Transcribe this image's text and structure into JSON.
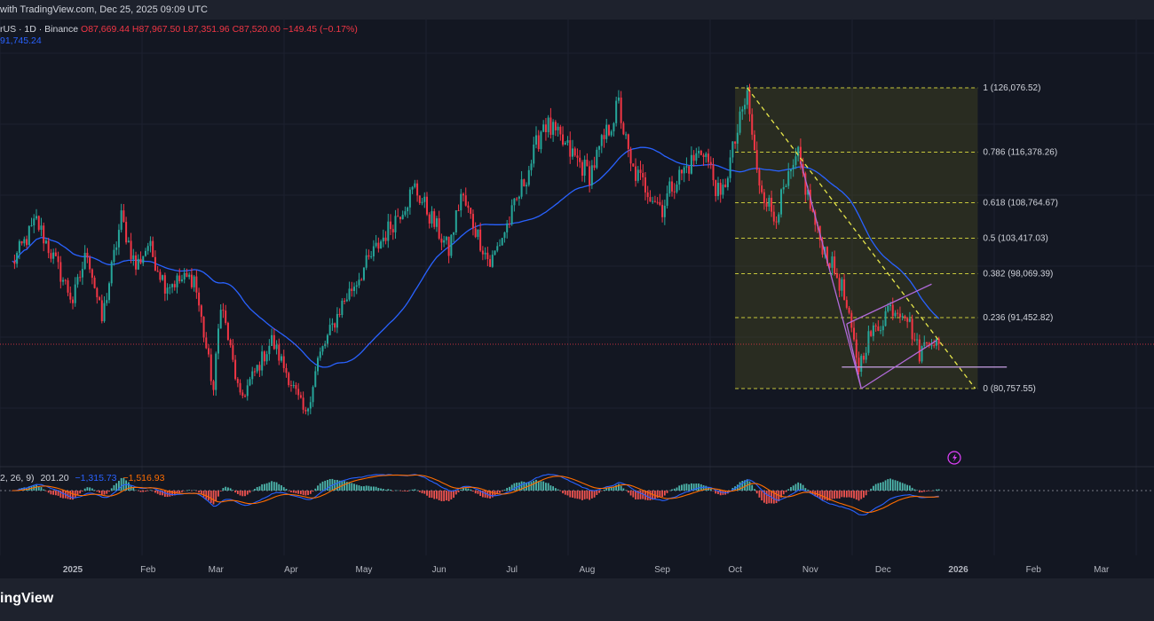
{
  "header": {
    "published": "with TradingView.com, Dec 25, 2025 09:09 UTC"
  },
  "legend": {
    "symbol": "rUS · 1D · Binance",
    "open": "O87,669.44",
    "high": "H87,967.50",
    "low": "L87,351.96",
    "close": "C87,520.00",
    "change": "−149.45 (−0.17%)"
  },
  "ma_value": "91,745.24",
  "macd_legend": {
    "params": "2, 26, 9)",
    "hist": "201.20",
    "macd": "−1,315.73",
    "signal": "−1,516.93"
  },
  "brand": "ingView",
  "colors": {
    "up": "#26a69a",
    "down": "#f23645",
    "ma": "#2962ff",
    "fib": "#c8c83c",
    "pattern": "#b06ad8",
    "signal": "#ff6d00"
  },
  "chart_data": {
    "type": "candlestick",
    "x_ticks": [
      "2025",
      "Feb",
      "Mar",
      "Apr",
      "May",
      "Jun",
      "Jul",
      "Aug",
      "Sep",
      "Oct",
      "Nov",
      "Dec",
      "2026",
      "Feb",
      "Mar"
    ],
    "anchors": [
      [
        "2024-12-07",
        99500
      ],
      [
        "2024-12-17",
        106000
      ],
      [
        "2025-01-01",
        94000
      ],
      [
        "2025-01-07",
        101500
      ],
      [
        "2025-01-13",
        91000
      ],
      [
        "2025-01-21",
        106500
      ],
      [
        "2025-01-27",
        99000
      ],
      [
        "2025-02-01",
        102500
      ],
      [
        "2025-02-08",
        96500
      ],
      [
        "2025-02-20",
        97500
      ],
      [
        "2025-02-28",
        80500
      ],
      [
        "2025-03-03",
        94000
      ],
      [
        "2025-03-11",
        79000
      ],
      [
        "2025-03-24",
        88000
      ],
      [
        "2025-03-31",
        82500
      ],
      [
        "2025-04-07",
        76500
      ],
      [
        "2025-04-12",
        85000
      ],
      [
        "2025-04-22",
        93500
      ],
      [
        "2025-05-08",
        103000
      ],
      [
        "2025-05-22",
        111000
      ],
      [
        "2025-06-05",
        101500
      ],
      [
        "2025-06-10",
        110000
      ],
      [
        "2025-06-22",
        99500
      ],
      [
        "2025-07-01",
        107000
      ],
      [
        "2025-07-10",
        116000
      ],
      [
        "2025-07-14",
        121000
      ],
      [
        "2025-08-02",
        113000
      ],
      [
        "2025-08-14",
        123500
      ],
      [
        "2025-08-19",
        114000
      ],
      [
        "2025-09-01",
        108000
      ],
      [
        "2025-09-05",
        111500
      ],
      [
        "2025-09-18",
        117000
      ],
      [
        "2025-09-25",
        109000
      ],
      [
        "2025-10-01",
        118000
      ],
      [
        "2025-10-06",
        125000
      ],
      [
        "2025-10-10",
        113000
      ],
      [
        "2025-10-17",
        106500
      ],
      [
        "2025-10-27",
        115500
      ],
      [
        "2025-11-04",
        104000
      ],
      [
        "2025-11-14",
        96000
      ],
      [
        "2025-11-21",
        84000
      ],
      [
        "2025-11-25",
        88500
      ],
      [
        "2025-11-30",
        90500
      ],
      [
        "2025-12-03",
        93000
      ],
      [
        "2025-12-10",
        92500
      ],
      [
        "2025-12-16",
        86000
      ],
      [
        "2025-12-20",
        88500
      ],
      [
        "2025-12-24",
        87520
      ]
    ],
    "fib_levels": [
      {
        "label": "1 (126,076.52)",
        "value": 126076.52
      },
      {
        "label": "0.786 (116,378.26)",
        "value": 116378.26
      },
      {
        "label": "0.618 (108,764.67)",
        "value": 108764.67
      },
      {
        "label": "0.5 (103,417.03)",
        "value": 103417.03
      },
      {
        "label": "0.382 (98,069.39)",
        "value": 98069.39
      },
      {
        "label": "0.236 (91,452.82)",
        "value": 91452.82
      },
      {
        "label": "0 (80,757.55)",
        "value": 80757.55
      }
    ],
    "trendline": {
      "from": [
        "2025-10-06",
        126076
      ],
      "to": [
        "2026-01-08",
        80757
      ]
    },
    "support": {
      "from": [
        "2025-11-14",
        84000
      ],
      "to": [
        "2026-01-21",
        84000
      ]
    },
    "channel": {
      "upper": [
        [
          "2025-11-16",
          90500
        ],
        [
          "2025-12-21",
          96500
        ]
      ],
      "lower": [
        [
          "2025-11-22",
          80757
        ],
        [
          "2025-12-23",
          88000
        ]
      ],
      "drop": [
        [
          "2025-10-28",
          115000
        ],
        [
          "2025-11-22",
          80757
        ]
      ]
    }
  }
}
